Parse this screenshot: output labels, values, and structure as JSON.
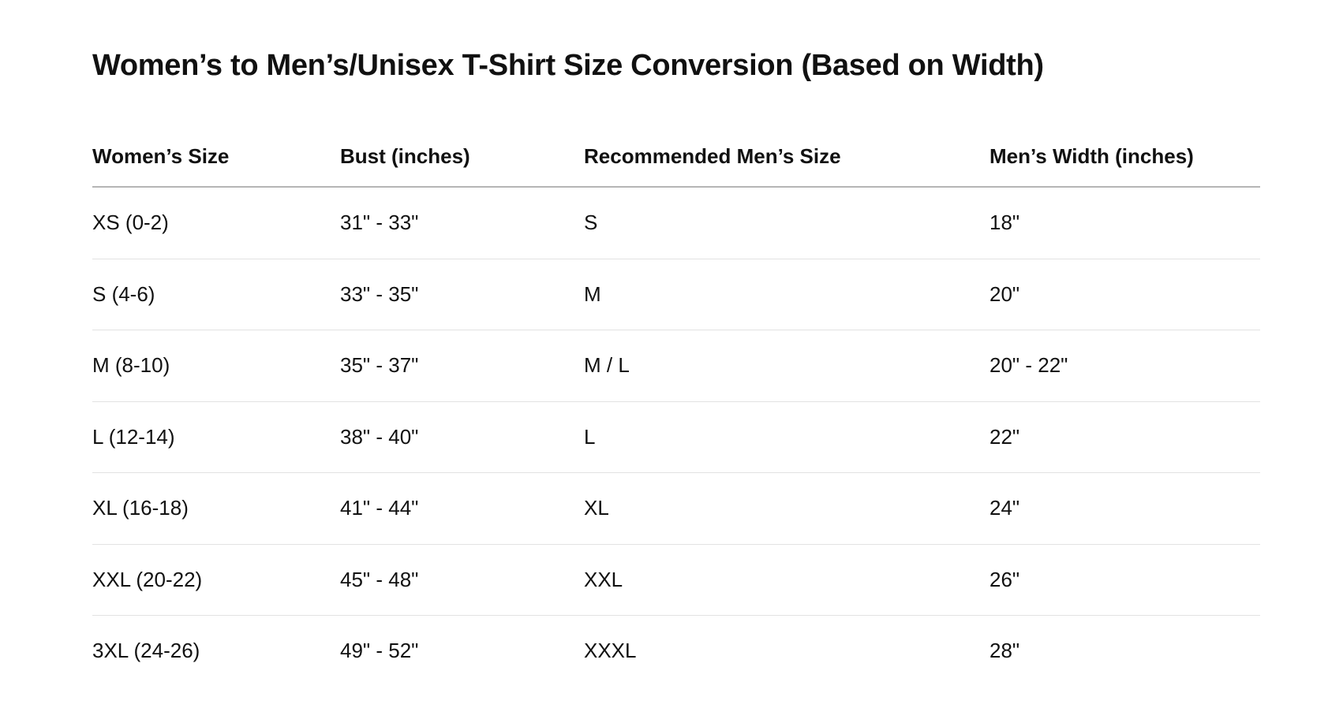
{
  "title": "Women’s to Men’s/Unisex T-Shirt Size Conversion (Based on Width)",
  "table": {
    "headers": [
      "Women’s Size",
      "Bust (inches)",
      "Recommended Men’s Size",
      "Men’s Width (inches)"
    ],
    "rows": [
      [
        "XS (0-2)",
        "31\" - 33\"",
        "S",
        "18\""
      ],
      [
        "S (4-6)",
        "33\" - 35\"",
        "M",
        "20\""
      ],
      [
        "M (8-10)",
        "35\" - 37\"",
        "M / L",
        "20\" - 22\""
      ],
      [
        "L (12-14)",
        "38\" - 40\"",
        "L",
        "22\""
      ],
      [
        "XL (16-18)",
        "41\" - 44\"",
        "XL",
        "24\""
      ],
      [
        "XXL (20-22)",
        "45\" - 48\"",
        "XXL",
        "26\""
      ],
      [
        "3XL (24-26)",
        "49\" - 52\"",
        "XXXL",
        "28\""
      ]
    ]
  }
}
